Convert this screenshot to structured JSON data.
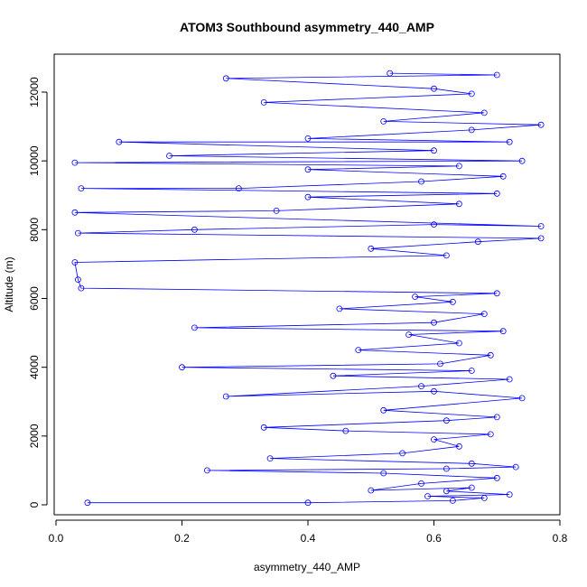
{
  "chart_data": {
    "type": "scatter",
    "title": "ATOM3 Southbound asymmetry_440_AMP",
    "xlabel": "asymmetry_440_AMP",
    "ylabel": "Altitude (m)",
    "xlim": [
      0,
      0.8
    ],
    "ylim": [
      0,
      12500
    ],
    "x_ticks": [
      "0.0",
      "0.2",
      "0.4",
      "0.6",
      "0.8"
    ],
    "y_ticks": [
      "0",
      "2000",
      "4000",
      "6000",
      "8000",
      "10000",
      "12000"
    ],
    "grid": false,
    "legend": "none",
    "marker": "open-circle",
    "connect_points": true,
    "series": [
      {
        "color": "#0000ff",
        "points": [
          [
            0.05,
            60
          ],
          [
            0.4,
            60
          ],
          [
            0.63,
            120
          ],
          [
            0.68,
            200
          ],
          [
            0.59,
            250
          ],
          [
            0.72,
            300
          ],
          [
            0.62,
            400
          ],
          [
            0.66,
            500
          ],
          [
            0.5,
            420
          ],
          [
            0.58,
            620
          ],
          [
            0.7,
            780
          ],
          [
            0.52,
            920
          ],
          [
            0.24,
            1000
          ],
          [
            0.62,
            1050
          ],
          [
            0.73,
            1100
          ],
          [
            0.66,
            1200
          ],
          [
            0.34,
            1350
          ],
          [
            0.55,
            1500
          ],
          [
            0.64,
            1700
          ],
          [
            0.6,
            1900
          ],
          [
            0.69,
            2050
          ],
          [
            0.46,
            2150
          ],
          [
            0.33,
            2250
          ],
          [
            0.62,
            2450
          ],
          [
            0.7,
            2550
          ],
          [
            0.52,
            2750
          ],
          [
            0.74,
            3100
          ],
          [
            0.6,
            3300
          ],
          [
            0.27,
            3150
          ],
          [
            0.58,
            3450
          ],
          [
            0.72,
            3650
          ],
          [
            0.44,
            3750
          ],
          [
            0.66,
            3900
          ],
          [
            0.2,
            4000
          ],
          [
            0.61,
            4100
          ],
          [
            0.69,
            4350
          ],
          [
            0.48,
            4500
          ],
          [
            0.64,
            4700
          ],
          [
            0.56,
            4950
          ],
          [
            0.71,
            5050
          ],
          [
            0.22,
            5150
          ],
          [
            0.6,
            5300
          ],
          [
            0.68,
            5550
          ],
          [
            0.45,
            5700
          ],
          [
            0.63,
            5900
          ],
          [
            0.57,
            6050
          ],
          [
            0.7,
            6150
          ],
          [
            0.04,
            6300
          ],
          [
            0.035,
            6550
          ],
          [
            0.03,
            7050
          ],
          [
            0.62,
            7250
          ],
          [
            0.5,
            7450
          ],
          [
            0.67,
            7650
          ],
          [
            0.77,
            7750
          ],
          [
            0.035,
            7900
          ],
          [
            0.22,
            8000
          ],
          [
            0.6,
            8150
          ],
          [
            0.77,
            8100
          ],
          [
            0.03,
            8500
          ],
          [
            0.35,
            8550
          ],
          [
            0.64,
            8750
          ],
          [
            0.4,
            8950
          ],
          [
            0.7,
            9050
          ],
          [
            0.04,
            9200
          ],
          [
            0.29,
            9200
          ],
          [
            0.58,
            9400
          ],
          [
            0.71,
            9550
          ],
          [
            0.4,
            9750
          ],
          [
            0.64,
            9850
          ],
          [
            0.03,
            9950
          ],
          [
            0.74,
            10000
          ],
          [
            0.18,
            10150
          ],
          [
            0.6,
            10300
          ],
          [
            0.1,
            10550
          ],
          [
            0.72,
            10550
          ],
          [
            0.4,
            10650
          ],
          [
            0.66,
            10900
          ],
          [
            0.77,
            11050
          ],
          [
            0.52,
            11150
          ],
          [
            0.68,
            11400
          ],
          [
            0.33,
            11700
          ],
          [
            0.66,
            11950
          ],
          [
            0.6,
            12100
          ],
          [
            0.27,
            12400
          ],
          [
            0.7,
            12500
          ],
          [
            0.53,
            12550
          ]
        ]
      }
    ]
  }
}
